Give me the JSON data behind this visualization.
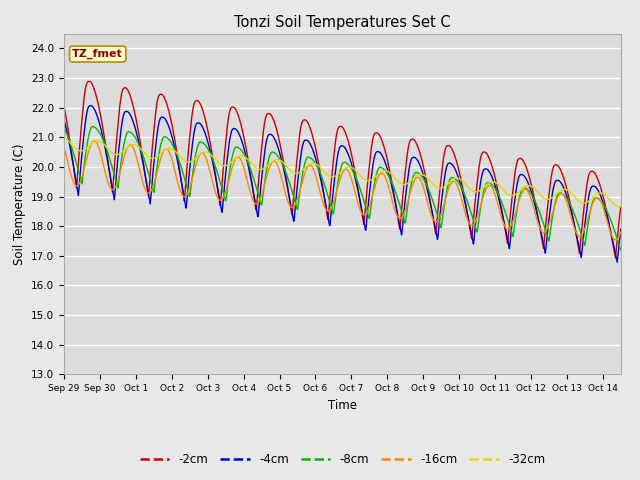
{
  "title": "Tonzi Soil Temperatures Set C",
  "xlabel": "Time",
  "ylabel": "Soil Temperature (C)",
  "ylim": [
    13.0,
    24.5
  ],
  "yticks": [
    13.0,
    14.0,
    15.0,
    16.0,
    17.0,
    18.0,
    19.0,
    20.0,
    21.0,
    22.0,
    23.0,
    24.0
  ],
  "colors": {
    "-2cm": "#cc0000",
    "-4cm": "#0000cc",
    "-8cm": "#00bb00",
    "-16cm": "#ff8800",
    "-32cm": "#dddd00"
  },
  "legend_label": "TZ_fmet",
  "background_color": "#e8e8e8",
  "plot_bg_color": "#dcdcdc",
  "n_days": 15.5,
  "n_points": 1550,
  "tick_labels": [
    "Sep 29",
    "Sep 30",
    "Oct 1",
    "Oct 2",
    "Oct 3",
    "Oct 4",
    "Oct 5",
    "Oct 6",
    "Oct 7",
    "Oct 8",
    "Oct 9",
    "Oct 10",
    "Oct 11",
    "Oct 12",
    "Oct 13",
    "Oct 14"
  ]
}
